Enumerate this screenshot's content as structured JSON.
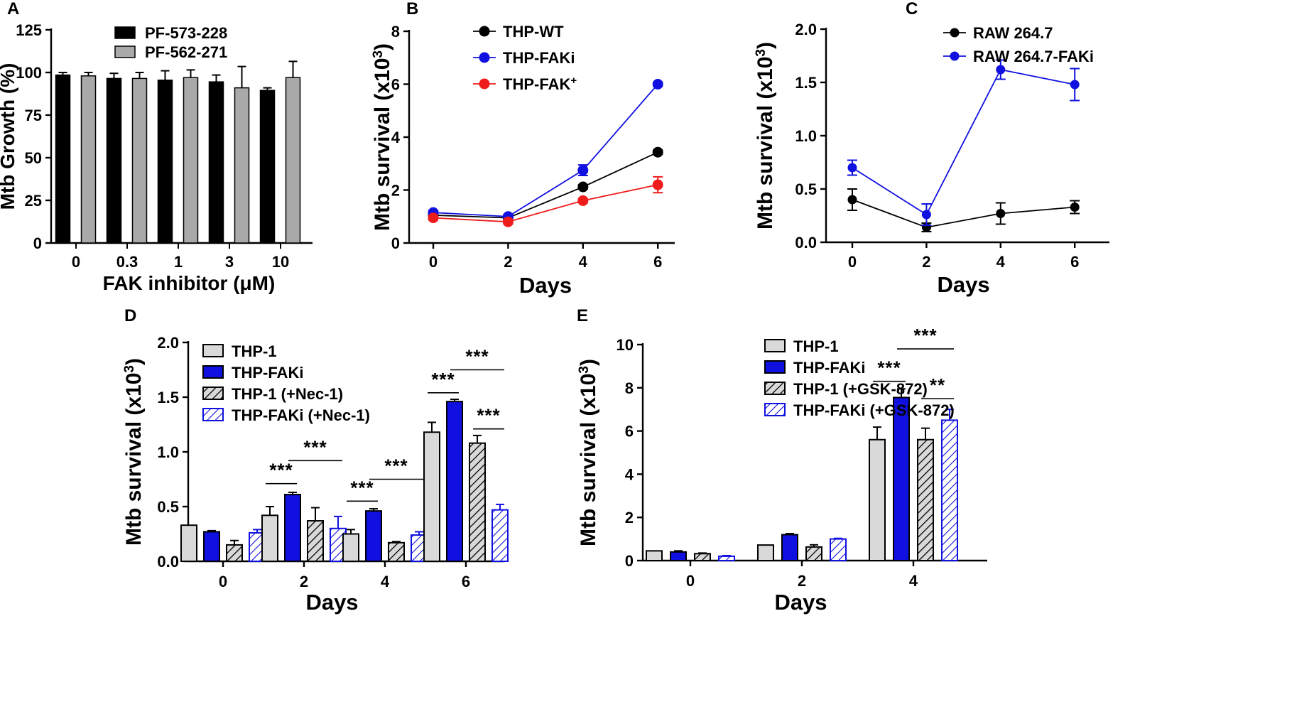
{
  "colors": {
    "black": "#000000",
    "grey": "#a9a9a9",
    "light_grey": "#d9d9d9",
    "blue": "#1010e0",
    "red": "#ef1c1c",
    "hatch_grey": "#a0a0a0"
  },
  "chart_data": [
    {
      "panel": "A",
      "type": "bar",
      "xlabel": "FAK inhibitor (μM)",
      "ylabel": "Mtb Growth (%)",
      "ylim": [
        0,
        125
      ],
      "yticks": [
        0,
        25,
        50,
        75,
        100,
        125
      ],
      "categories": [
        "0",
        "0.3",
        "1",
        "3",
        "10"
      ],
      "series": [
        {
          "name": "PF-573-228",
          "values": [
            98.5,
            96.5,
            95.5,
            94.5,
            89.5
          ],
          "errors": [
            1.5,
            3,
            5.5,
            4,
            1.5
          ]
        },
        {
          "name": "PF-562-271",
          "values": [
            98,
            96.5,
            97,
            91,
            97
          ],
          "errors": [
            2,
            3.5,
            4.5,
            12.5,
            9.5
          ]
        }
      ]
    },
    {
      "panel": "B",
      "type": "line",
      "xlabel": "Days",
      "ylabel": "Mtb survival (x10",
      "ylabel_sup": "3",
      "ylabel_close": ")",
      "ylim": [
        0,
        8
      ],
      "yticks": [
        0,
        2,
        4,
        6,
        8
      ],
      "x": [
        0,
        2,
        4,
        6
      ],
      "series": [
        {
          "name": "THP-WT",
          "values": [
            1.05,
            0.95,
            2.12,
            3.43
          ],
          "errors": [
            0.08,
            0.08,
            0.08,
            0.08
          ]
        },
        {
          "name": "THP-FAKi",
          "values": [
            1.15,
            1.0,
            2.75,
            6.0
          ],
          "errors": [
            0.08,
            0.08,
            0.2,
            0.08
          ]
        },
        {
          "name": "THP-FAK",
          "name_sup": "+",
          "values": [
            0.95,
            0.8,
            1.6,
            2.2
          ],
          "errors": [
            0.08,
            0.08,
            0.08,
            0.3
          ]
        }
      ]
    },
    {
      "panel": "C",
      "type": "line",
      "xlabel": "Days",
      "ylabel": "Mtb survival (x10",
      "ylabel_sup": "3",
      "ylabel_close": ")",
      "ylim": [
        0,
        2.0
      ],
      "yticks": [
        "0.0",
        "0.5",
        "1.0",
        "1.5",
        "2.0"
      ],
      "x": [
        0,
        2,
        4,
        6
      ],
      "series": [
        {
          "name": "RAW 264.7",
          "values": [
            0.4,
            0.14,
            0.27,
            0.33
          ],
          "errors": [
            0.1,
            0.04,
            0.1,
            0.06
          ]
        },
        {
          "name": "RAW 264.7-FAKi",
          "values": [
            0.7,
            0.26,
            1.62,
            1.48
          ],
          "errors": [
            0.07,
            0.1,
            0.09,
            0.15
          ]
        }
      ]
    },
    {
      "panel": "D",
      "type": "bar",
      "xlabel": "Days",
      "ylabel": "Mtb survival (x10",
      "ylabel_sup": "3",
      "ylabel_close": ")",
      "ylim": [
        0,
        2.0
      ],
      "yticks": [
        "0.0",
        "0.5",
        "1.0",
        "1.5",
        "2.0"
      ],
      "categories": [
        "0",
        "2",
        "4",
        "6"
      ],
      "series": [
        {
          "name": "THP-1",
          "values": [
            0.33,
            0.42,
            0.25,
            1.18
          ],
          "errors": [
            0.0,
            0.08,
            0.04,
            0.09
          ]
        },
        {
          "name": "THP-FAKi",
          "values": [
            0.27,
            0.61,
            0.46,
            1.46
          ],
          "errors": [
            0.01,
            0.02,
            0.02,
            0.02
          ]
        },
        {
          "name": "THP-1 (+Nec-1)",
          "values": [
            0.15,
            0.37,
            0.17,
            1.08
          ],
          "errors": [
            0.04,
            0.12,
            0.01,
            0.07
          ]
        },
        {
          "name": "THP-FAKi (+Nec-1)",
          "values": [
            0.26,
            0.3,
            0.24,
            0.47
          ],
          "errors": [
            0.03,
            0.11,
            0.03,
            0.05
          ]
        }
      ],
      "annotations": [
        {
          "text": "***",
          "group": 1,
          "from": 0,
          "to": 1,
          "y": 0.71
        },
        {
          "text": "***",
          "group": 1,
          "from": 1,
          "to": 3,
          "y": 0.92
        },
        {
          "text": "***",
          "group": 2,
          "from": 0,
          "to": 1,
          "y": 0.55
        },
        {
          "text": "***",
          "group": 2,
          "from": 1,
          "to": 3,
          "y": 0.75
        },
        {
          "text": "***",
          "group": 3,
          "from": 0,
          "to": 1,
          "y": 1.54
        },
        {
          "text": "***",
          "group": 3,
          "from": 1,
          "to": 3,
          "y": 1.75
        },
        {
          "text": "***",
          "group": 3,
          "from": 2,
          "to": 3,
          "y": 1.21
        }
      ]
    },
    {
      "panel": "E",
      "type": "bar",
      "xlabel": "Days",
      "ylabel": "Mtb survival (x10",
      "ylabel_sup": "3",
      "ylabel_close": ")",
      "ylim": [
        0,
        10
      ],
      "yticks": [
        0,
        2,
        4,
        6,
        8,
        10
      ],
      "categories": [
        "0",
        "2",
        "4"
      ],
      "series": [
        {
          "name": "THP-1",
          "values": [
            0.45,
            0.72,
            5.6
          ],
          "errors": [
            0.0,
            0.0,
            0.58
          ]
        },
        {
          "name": "THP-FAKi",
          "values": [
            0.4,
            1.2,
            7.55
          ],
          "errors": [
            0.05,
            0.05,
            0.4
          ]
        },
        {
          "name": "THP-1 (+GSK-872)",
          "values": [
            0.32,
            0.63,
            5.6
          ],
          "errors": [
            0.03,
            0.1,
            0.53
          ]
        },
        {
          "name": "THP-FAKi (+GSK-872)",
          "values": [
            0.2,
            1.0,
            6.5
          ],
          "errors": [
            0.03,
            0.03,
            0.5
          ]
        }
      ],
      "annotations": [
        {
          "text": "***",
          "group": 2,
          "from": 0,
          "to": 1,
          "y": 8.3
        },
        {
          "text": "***",
          "group": 2,
          "from": 1,
          "to": 3,
          "y": 9.8
        },
        {
          "text": "**",
          "group": 2,
          "from": 2,
          "to": 3,
          "y": 7.5
        }
      ]
    }
  ]
}
